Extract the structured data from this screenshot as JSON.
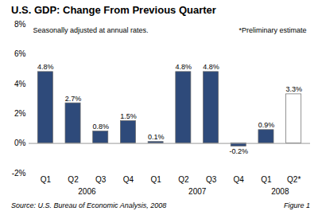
{
  "chart_data": {
    "type": "bar",
    "title": "U.S. GDP: Change From Previous Quarter",
    "categories": [
      "Q1",
      "Q2",
      "Q3",
      "Q4",
      "Q1",
      "Q2",
      "Q3",
      "Q4",
      "Q1",
      "Q2*"
    ],
    "values": [
      4.8,
      2.7,
      0.8,
      1.5,
      0.1,
      4.8,
      4.8,
      -0.2,
      0.9,
      3.3
    ],
    "value_labels": [
      "4.8%",
      "2.7%",
      "0.8%",
      "1.5%",
      "0.1%",
      "4.8%",
      "4.8%",
      "-0.2%",
      "0.9%",
      "3.3%"
    ],
    "data_labels": true,
    "colors": [
      "#2E4A7A",
      "#2E4A7A",
      "#2E4A7A",
      "#2E4A7A",
      "#2E4A7A",
      "#2E4A7A",
      "#2E4A7A",
      "#2E4A7A",
      "#2E4A7A",
      "#FFFFFF"
    ],
    "ylim": [
      -2,
      8
    ],
    "yticks": [
      {
        "value": -2,
        "label": "-2%"
      },
      {
        "value": 0,
        "label": "0%"
      },
      {
        "value": 2,
        "label": "2%"
      },
      {
        "value": 4,
        "label": "4%"
      },
      {
        "value": 6,
        "label": "6%"
      },
      {
        "value": 8,
        "label": "8%"
      }
    ],
    "grid": false,
    "group_labels": [
      "2006",
      "2007",
      "2008"
    ],
    "annotations": [
      "Seasonally adjusted at annual rates.",
      "*Preliminary estimate"
    ],
    "source": "Source: U.S. Bureau of Economic Analysis, 2008",
    "figure_label": "Figure 1"
  }
}
